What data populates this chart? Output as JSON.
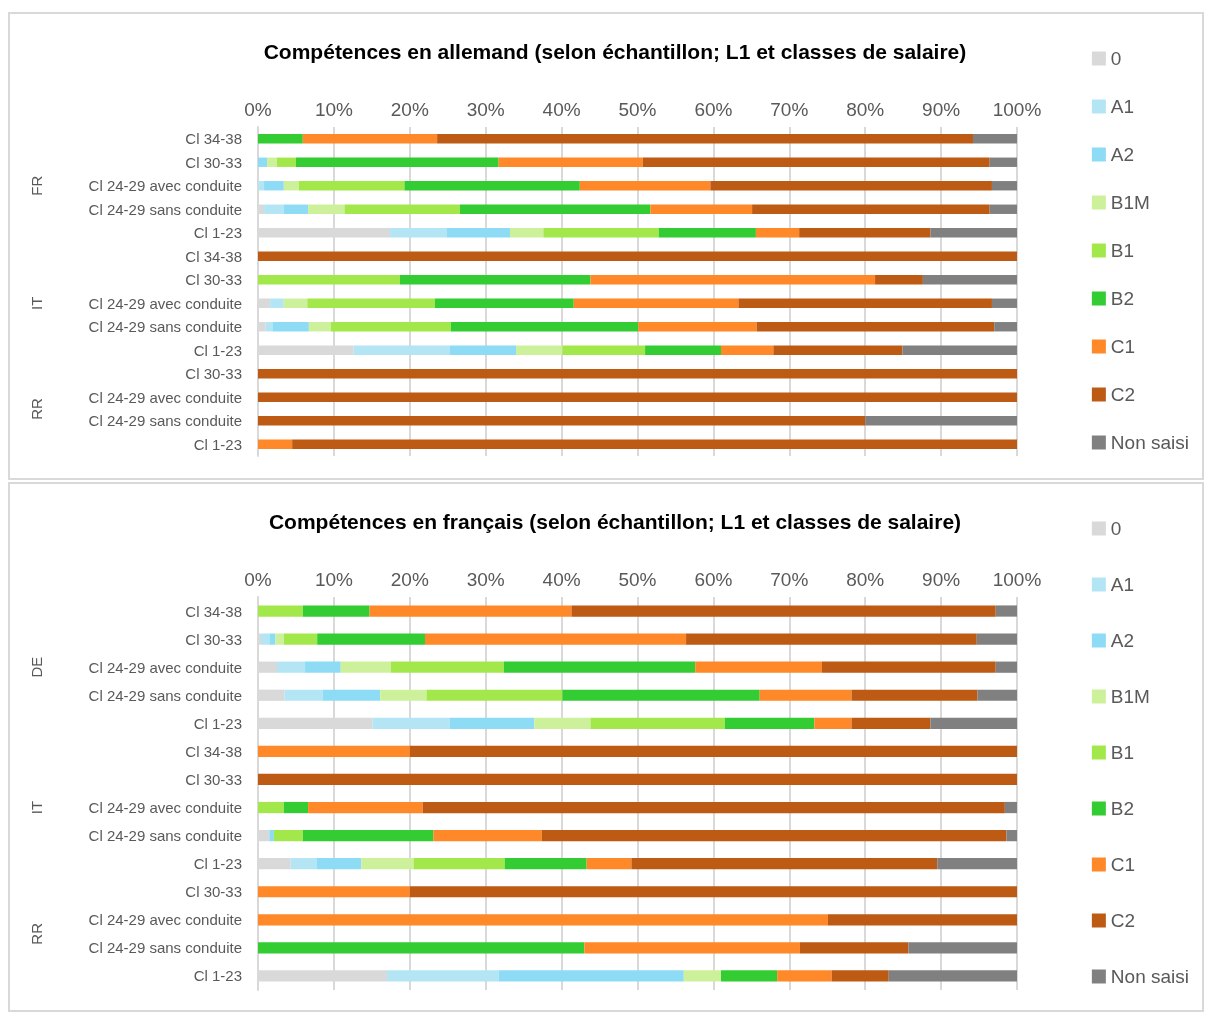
{
  "chart_data": [
    {
      "type": "bar",
      "orientation": "horizontal",
      "stacked": true,
      "title": "Compétences en allemand (selon échantillon; L1 et classes de salaire)",
      "categories": [
        "Cl 34-38",
        "Cl 30-33",
        "Cl 24-29 avec conduite",
        "Cl 24-29 sans conduite",
        "Cl 1-23",
        "Cl 34-38",
        "Cl 30-33",
        "Cl 24-29 avec conduite",
        "Cl 24-29 sans conduite",
        "Cl 1-23",
        "Cl 30-33",
        "Cl 24-29 avec conduite",
        "Cl 24-29 sans conduite",
        "Cl 1-23"
      ],
      "annotations": [
        "FR",
        "IT",
        "RR"
      ],
      "xlim": [
        0,
        100
      ],
      "xticks": [
        {
          "value": 0,
          "label": "0%"
        },
        {
          "value": 10,
          "label": "10%"
        },
        {
          "value": 20,
          "label": "20%"
        },
        {
          "value": 30,
          "label": "30%"
        },
        {
          "value": 40,
          "label": "40%"
        },
        {
          "value": 50,
          "label": "50%"
        },
        {
          "value": 60,
          "label": "60%"
        },
        {
          "value": 70,
          "label": "70%"
        },
        {
          "value": 80,
          "label": "80%"
        },
        {
          "value": 90,
          "label": "90%"
        },
        {
          "value": 100,
          "label": "100%"
        }
      ],
      "grid": "x",
      "legend": "right",
      "series": [
        {
          "name": "0",
          "color": "#d9d9d9",
          "values": [
            0,
            0,
            0,
            0.8,
            17.4,
            0,
            0,
            1.6,
            1.0,
            12.6,
            0,
            0,
            0,
            0
          ]
        },
        {
          "name": "A1",
          "color": "#b4e5f5",
          "values": [
            0,
            0,
            0.8,
            2.6,
            7.5,
            0,
            0,
            1.8,
            0.9,
            12.7,
            0,
            0,
            0,
            0
          ]
        },
        {
          "name": "A2",
          "color": "#8ddbf5",
          "values": [
            0,
            1.2,
            2.6,
            3.2,
            8.3,
            0,
            0,
            0,
            4.8,
            8.7,
            0,
            0,
            0,
            0
          ]
        },
        {
          "name": "B1M",
          "color": "#cdf19a",
          "values": [
            0,
            1.3,
            2.0,
            4.8,
            4.4,
            0,
            0,
            3.1,
            2.9,
            6.1,
            0,
            0,
            0,
            0
          ]
        },
        {
          "name": "B1",
          "color": "#a3e84b",
          "values": [
            0,
            2.5,
            13.9,
            15.2,
            15.2,
            0,
            18.7,
            16.8,
            15.8,
            10.9,
            0,
            0,
            0,
            0
          ]
        },
        {
          "name": "B2",
          "color": "#33cc33",
          "values": [
            5.9,
            26.7,
            23.1,
            25.1,
            12.8,
            0,
            25.1,
            18.3,
            24.7,
            10.0,
            0,
            0,
            0,
            0
          ]
        },
        {
          "name": "C1",
          "color": "#ff8828",
          "values": [
            17.7,
            19.0,
            17.2,
            13.4,
            5.7,
            0,
            37.5,
            21.7,
            15.6,
            6.9,
            0,
            0,
            0,
            4.5
          ]
        },
        {
          "name": "C2",
          "color": "#bd5a13",
          "values": [
            70.6,
            45.7,
            37.1,
            31.3,
            17.3,
            100,
            6.3,
            33.4,
            31.3,
            17.0,
            100,
            100,
            80.0,
            95.5
          ]
        },
        {
          "name": "Non saisi",
          "color": "#808080",
          "values": [
            5.8,
            3.6,
            3.3,
            3.6,
            11.4,
            0,
            12.4,
            3.3,
            3.0,
            15.1,
            0,
            0,
            20.0,
            0
          ]
        }
      ]
    },
    {
      "type": "bar",
      "orientation": "horizontal",
      "stacked": true,
      "title": "Compétences en français (selon échantillon; L1 et classes de salaire)",
      "categories": [
        "Cl 34-38",
        "Cl 30-33",
        "Cl 24-29 avec conduite",
        "Cl 24-29 sans conduite",
        "Cl 1-23",
        "Cl 34-38",
        "Cl 30-33",
        "Cl 24-29 avec conduite",
        "Cl 24-29 sans conduite",
        "Cl 1-23",
        "Cl 30-33",
        "Cl 24-29 avec conduite",
        "Cl 24-29 sans conduite",
        "Cl 1-23"
      ],
      "annotations": [
        "DE",
        "IT",
        "RR"
      ],
      "xlim": [
        0,
        100
      ],
      "xticks": [
        {
          "value": 0,
          "label": "0%"
        },
        {
          "value": 10,
          "label": "10%"
        },
        {
          "value": 20,
          "label": "20%"
        },
        {
          "value": 30,
          "label": "30%"
        },
        {
          "value": 40,
          "label": "40%"
        },
        {
          "value": 50,
          "label": "50%"
        },
        {
          "value": 60,
          "label": "60%"
        },
        {
          "value": 70,
          "label": "70%"
        },
        {
          "value": 80,
          "label": "80%"
        },
        {
          "value": 90,
          "label": "90%"
        },
        {
          "value": 100,
          "label": "100%"
        }
      ],
      "grid": "x",
      "legend": "right",
      "series": [
        {
          "name": "0",
          "color": "#d9d9d9",
          "values": [
            0,
            0.4,
            2.5,
            3.5,
            15.1,
            0,
            0,
            0,
            1.5,
            4.3,
            0,
            0,
            0,
            17.0
          ]
        },
        {
          "name": "A1",
          "color": "#b4e5f5",
          "values": [
            0,
            1.1,
            3.7,
            5.0,
            10.2,
            0,
            0,
            0,
            0,
            3.4,
            0,
            0,
            0,
            14.7
          ]
        },
        {
          "name": "A2",
          "color": "#8ddbf5",
          "values": [
            0,
            0.8,
            4.7,
            7.6,
            11.1,
            0,
            0,
            0,
            0.6,
            5.9,
            0,
            0,
            0,
            24.4
          ]
        },
        {
          "name": "B1M",
          "color": "#cdf19a",
          "values": [
            0,
            1.1,
            6.6,
            6.1,
            7.4,
            0,
            0,
            0,
            0,
            6.9,
            0,
            0,
            0,
            4.9
          ]
        },
        {
          "name": "B1",
          "color": "#a3e84b",
          "values": [
            5.9,
            4.4,
            14.9,
            17.9,
            17.7,
            0,
            0,
            3.4,
            3.8,
            12.0,
            0,
            0,
            0,
            0
          ]
        },
        {
          "name": "B2",
          "color": "#33cc33",
          "values": [
            8.8,
            14.2,
            25.2,
            26.0,
            11.8,
            0,
            0,
            3.2,
            17.2,
            10.8,
            0,
            0,
            43.0,
            7.4
          ]
        },
        {
          "name": "C1",
          "color": "#ff8828",
          "values": [
            26.6,
            34.4,
            16.7,
            12.1,
            4.9,
            20.0,
            0,
            15.1,
            14.3,
            5.9,
            20.0,
            75.1,
            28.4,
            7.2
          ]
        },
        {
          "name": "C2",
          "color": "#bd5a13",
          "values": [
            55.9,
            38.3,
            22.9,
            16.6,
            10.4,
            80.0,
            100,
            76.7,
            61.2,
            40.3,
            80.0,
            24.9,
            14.3,
            7.5
          ]
        },
        {
          "name": "Non saisi",
          "color": "#808080",
          "values": [
            2.8,
            5.3,
            2.8,
            5.2,
            11.4,
            0,
            0,
            1.6,
            1.4,
            10.5,
            0,
            0,
            14.3,
            16.9
          ]
        }
      ]
    }
  ]
}
